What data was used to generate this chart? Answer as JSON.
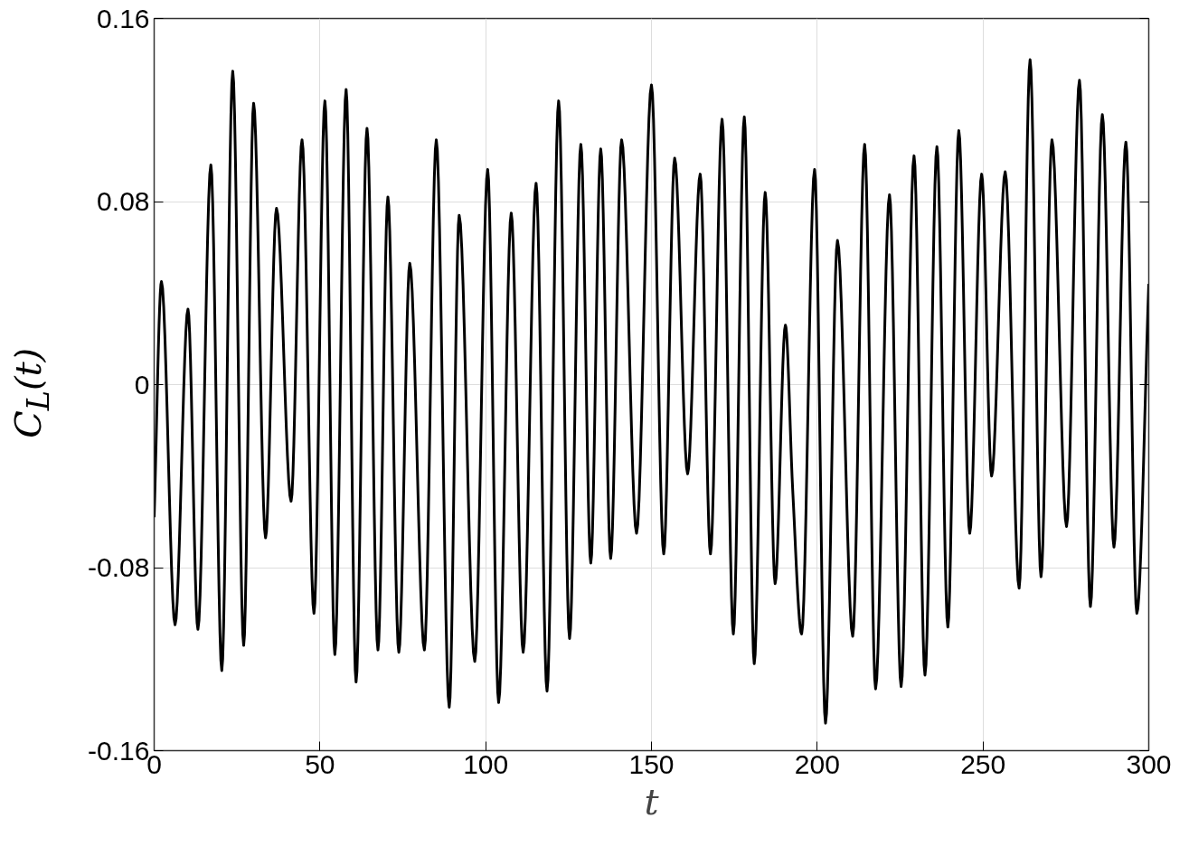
{
  "chart_data": {
    "type": "line",
    "xlabel": "t",
    "ylabel": "C$_{L}$(t)",
    "x": [
      0,
      2.2,
      6.3,
      10.2,
      13.2,
      17.1,
      20.4,
      23.7,
      27,
      30,
      33.6,
      36.9,
      41.3,
      44.6,
      48.2,
      51.5,
      54.5,
      57.9,
      60.9,
      64.2,
      67.5,
      70.5,
      73.8,
      77.1,
      81.5,
      85.1,
      89,
      92,
      96.7,
      100.6,
      103.9,
      107.7,
      111.3,
      115.2,
      118.5,
      122,
      125.3,
      128.7,
      131.7,
      134.7,
      137.7,
      141,
      145.5,
      150,
      153.7,
      157,
      160.9,
      164.7,
      167.8,
      171.3,
      174.7,
      178,
      181,
      184.3,
      187.3,
      190.4,
      192.6,
      195.3,
      199.2,
      202.5,
      206.1,
      210.7,
      214.3,
      217.6,
      221.8,
      225.3,
      229.2,
      232.5,
      236.1,
      239.4,
      242.7,
      246,
      249.6,
      252.6,
      256.7,
      260.9,
      264.2,
      267.5,
      270.8,
      275.2,
      279.1,
      282.4,
      286,
      289.5,
      293.1,
      296.4,
      300
    ],
    "series": [
      {
        "color": "#000000",
        "values": [
          -0.058,
          0.045,
          -0.105,
          0.033,
          -0.107,
          0.096,
          -0.125,
          0.137,
          -0.114,
          0.123,
          -0.067,
          0.077,
          -0.051,
          0.107,
          -0.1,
          0.124,
          -0.118,
          0.129,
          -0.13,
          0.112,
          -0.116,
          0.082,
          -0.117,
          0.053,
          -0.116,
          0.107,
          -0.141,
          0.074,
          -0.121,
          0.094,
          -0.139,
          0.075,
          -0.117,
          0.088,
          -0.134,
          0.124,
          -0.111,
          0.105,
          -0.078,
          0.103,
          -0.076,
          0.107,
          -0.065,
          0.131,
          -0.074,
          0.099,
          -0.039,
          0.092,
          -0.074,
          0.116,
          -0.109,
          0.117,
          -0.122,
          0.084,
          -0.087,
          0.026,
          -0.046,
          -0.109,
          0.094,
          -0.148,
          0.063,
          -0.11,
          0.105,
          -0.133,
          0.083,
          -0.132,
          0.1,
          -0.127,
          0.104,
          -0.106,
          0.111,
          -0.065,
          0.092,
          -0.04,
          0.093,
          -0.089,
          0.142,
          -0.084,
          0.107,
          -0.062,
          0.133,
          -0.097,
          0.118,
          -0.071,
          0.106,
          -0.1,
          0.044
        ]
      }
    ],
    "xlim": [
      0,
      300
    ],
    "ylim": [
      -0.16,
      0.16
    ],
    "xticks": [
      0,
      50,
      100,
      150,
      200,
      250,
      300
    ],
    "yticks": [
      -0.16,
      -0.08,
      0,
      0.08,
      0.16
    ],
    "grid": true,
    "marker": "none",
    "line_style": "solid"
  }
}
